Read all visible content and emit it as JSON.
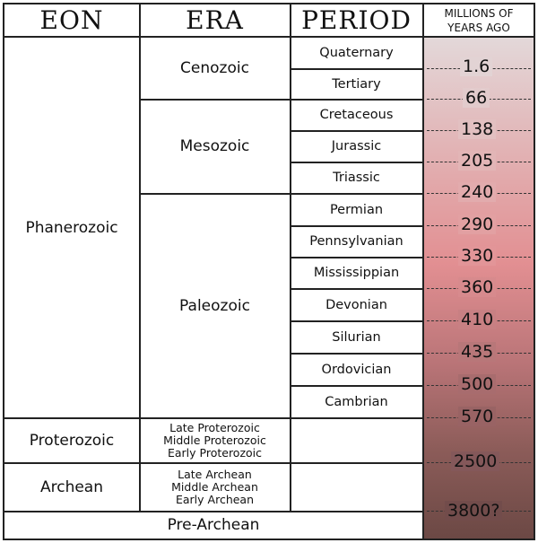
{
  "headers": {
    "eon": "EON",
    "era": "ERA",
    "period": "PERIOD",
    "mya_line1": "MILLIONS OF",
    "mya_line2": "YEARS AGO"
  },
  "eons": {
    "phanerozoic": "Phanerozoic",
    "proterozoic": "Proterozoic",
    "archean": "Archean",
    "pre_archean": "Pre-Archean"
  },
  "eras": {
    "cenozoic": "Cenozoic",
    "mesozoic": "Mesozoic",
    "paleozoic": "Paleozoic",
    "proterozoic_sub": [
      "Late Proterozoic",
      "Middle Proterozoic",
      "Early Proterozoic"
    ],
    "archean_sub": [
      "Late Archean",
      "Middle Archean",
      "Early Archean"
    ]
  },
  "periods": [
    "Quaternary",
    "Tertiary",
    "Cretaceous",
    "Jurassic",
    "Triassic",
    "Permian",
    "Pennsylvanian",
    "Mississippian",
    "Devonian",
    "Silurian",
    "Ordovician",
    "Cambrian"
  ],
  "mya": [
    "1.6",
    "66",
    "138",
    "205",
    "240",
    "290",
    "330",
    "360",
    "410",
    "435",
    "500",
    "570",
    "2500",
    "3800?"
  ],
  "colors": {
    "gradient_top": "#e3d8d9",
    "gradient_mid": "#e28f92",
    "gradient_bottom": "#6b4844",
    "lines": "#222222"
  }
}
